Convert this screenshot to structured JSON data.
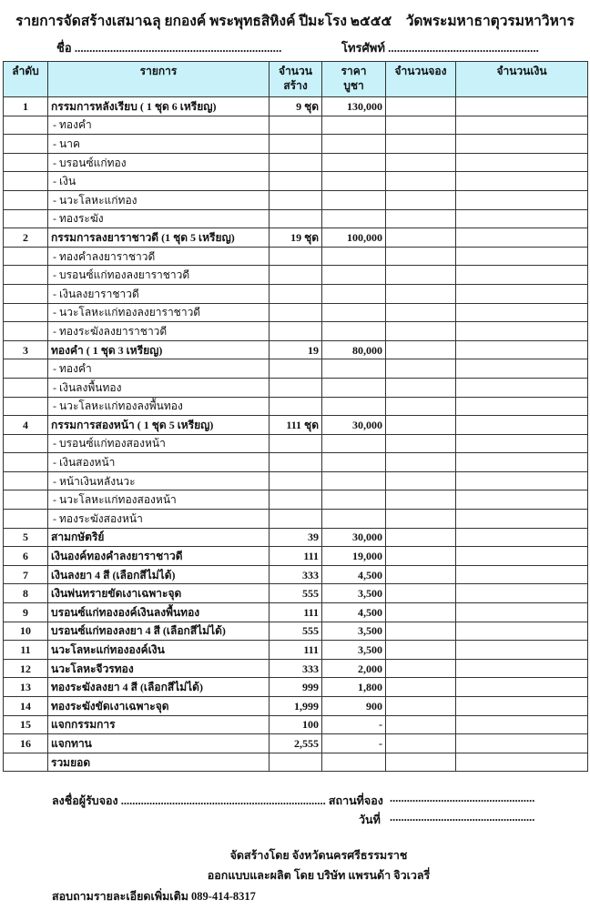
{
  "title": "รายการจัดสร้างเสมาฉลุ ยกองค์ พระพุทธสิหิงค์ ปีมะโรง ๒๕๕๕    วัดพระมหาธาตุวรมหาวิหาร",
  "name_line": "ชื่อ ......................................................................",
  "phone_line": "โทรศัพท์ ...................................................",
  "columns": {
    "no": "ลำดับ",
    "item": "รายการ",
    "qty_line1": "จำนวน",
    "qty_line2": "สร้าง",
    "price_line1": "ราคา",
    "price_line2": "บูชา",
    "reserve": "จำนวนจอง",
    "amount": "จำนวนเงิน"
  },
  "rows": [
    {
      "type": "item",
      "no": "1",
      "name": "กรรมการหลังเรียบ  ( 1 ชุด 6 เหรียญ)",
      "qty": "9 ชุด",
      "price": "130,000"
    },
    {
      "type": "sub",
      "name": "- ทองคำ"
    },
    {
      "type": "sub",
      "name": "-  นาค"
    },
    {
      "type": "sub",
      "name": "- บรอนซ์แก่ทอง"
    },
    {
      "type": "sub",
      "name": "- เงิน"
    },
    {
      "type": "sub",
      "name": "- นวะโลหะแก่ทอง"
    },
    {
      "type": "sub",
      "name": "- ทองระฆัง"
    },
    {
      "type": "item",
      "no": "2",
      "name": "กรรมการลงยาราชาวดี (1 ชุด 5 เหรียญ)",
      "qty": "19 ชุด",
      "price": "100,000"
    },
    {
      "type": "sub",
      "name": "- ทองคำลงยาราชาวดี"
    },
    {
      "type": "sub",
      "name": "- บรอนซ์แก่ทองลงยาราชาวดี"
    },
    {
      "type": "sub",
      "name": "- เงินลงยาราชาวดี"
    },
    {
      "type": "sub",
      "name": "- นวะโลหะแก่ทองลงยาราชาวดี"
    },
    {
      "type": "sub",
      "name": "- ทองระฆังลงยาราชาวดี"
    },
    {
      "type": "item",
      "no": "3",
      "name": "ทองคำ ( 1 ชุด 3 เหรียญ)",
      "qty": "19",
      "price": "80,000"
    },
    {
      "type": "sub",
      "name": "- ทองคำ"
    },
    {
      "type": "sub",
      "name": "- เงินลงพื้นทอง"
    },
    {
      "type": "sub",
      "name": "- นวะโลหะแก่ทองลงพื้นทอง"
    },
    {
      "type": "item",
      "no": "4",
      "name": "กรรมการสองหน้า ( 1 ชุด 5 เหรียญ)",
      "qty": "111 ชุด",
      "price": "30,000"
    },
    {
      "type": "sub",
      "name": "- บรอนซ์แก่ทองสองหน้า"
    },
    {
      "type": "sub",
      "name": "- เงินสองหน้า"
    },
    {
      "type": "sub",
      "name": "-  หน้าเงินหลังนวะ"
    },
    {
      "type": "sub",
      "name": "- นวะโลหะแก่ทองสองหน้า"
    },
    {
      "type": "sub",
      "name": "- ทองระฆังสองหน้า"
    },
    {
      "type": "item",
      "no": "5",
      "name": "สามกษัตริย์",
      "qty": "39",
      "price": "30,000"
    },
    {
      "type": "item",
      "no": "6",
      "name": "เงินองค์ทองคำลงยาราชาวดี",
      "qty": "111",
      "price": "19,000"
    },
    {
      "type": "item",
      "no": "7",
      "name": "เงินลงยา 4 สี    (เลือกสีไม่ได้)",
      "qty": "333",
      "price": "4,500"
    },
    {
      "type": "item",
      "no": "8",
      "name": "เงินพ่นทรายขัดเงาเฉพาะจุด",
      "qty": "555",
      "price": "3,500"
    },
    {
      "type": "item",
      "no": "9",
      "name": "บรอนซ์แก่ทององค์เงินลงพื้นทอง",
      "qty": "111",
      "price": "4,500"
    },
    {
      "type": "item",
      "no": "10",
      "name": "บรอนซ์แก่ทองลงยา 4 สี (เลือกสีไม่ได้)",
      "qty": "555",
      "price": "3,500"
    },
    {
      "type": "item",
      "no": "11",
      "name": "นวะโลหะแก่ทององค์เงิน",
      "qty": "111",
      "price": "3,500"
    },
    {
      "type": "item",
      "no": "12",
      "name": "นวะโลหะจีวรทอง",
      "qty": "333",
      "price": "2,000"
    },
    {
      "type": "item",
      "no": "13",
      "name": "ทองระฆังลงยา 4 สี (เลือกสีไม่ได้)",
      "qty": "999",
      "price": "1,800"
    },
    {
      "type": "item",
      "no": "14",
      "name": "ทองระฆังขัดเงาเฉพาะจุด",
      "qty": "1,999",
      "price": "900"
    },
    {
      "type": "item",
      "no": "15",
      "name": "แจกกรรมการ",
      "qty": "100",
      "price": "-"
    },
    {
      "type": "item",
      "no": "16",
      "name": "แจกทาน",
      "qty": "2,555",
      "price": "-"
    },
    {
      "type": "total",
      "name": "  รวมยอด"
    }
  ],
  "footer": {
    "signer": "ลงชื่อผู้รับจอง ........................................................................ สถานที่จอง",
    "place_dots": "...................................................",
    "date_label": "วันที่",
    "date_dots": "...................................................",
    "made_by": "จัดสร้างโดย จังหวัดนครศรีธรรมราช",
    "designed_by": "ออกแบบและผลิต โดย บริษัท แพรนด้า จิวเวลรี่",
    "contact": "สอบถามรายละเอียดเพิ่มเติม   089-414-8317"
  },
  "colors": {
    "header_bg": "#c8f1fa",
    "border": "#333333"
  }
}
